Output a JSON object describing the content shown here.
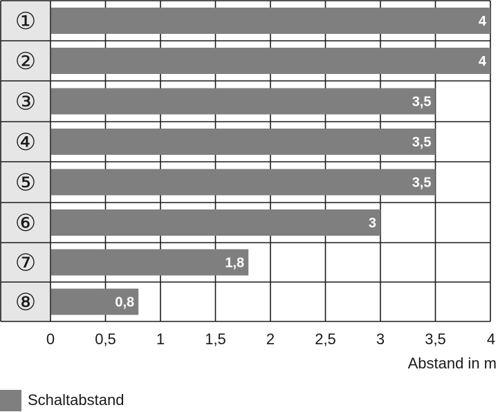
{
  "chart_data": {
    "type": "bar",
    "orientation": "horizontal",
    "categories": [
      "①",
      "②",
      "③",
      "④",
      "⑤",
      "⑥",
      "⑦",
      "⑧"
    ],
    "values": [
      4,
      4,
      3.5,
      3.5,
      3.5,
      3,
      1.8,
      0.8
    ],
    "value_labels": [
      "4",
      "4",
      "3,5",
      "3,5",
      "3,5",
      "3",
      "1,8",
      "0,8"
    ],
    "x_ticks": [
      "0",
      "0,5",
      "1",
      "1,5",
      "2",
      "2,5",
      "3",
      "3,5",
      "4"
    ],
    "xlim": [
      0,
      4
    ],
    "xlabel": "Abstand in m",
    "grid": true,
    "legend": [
      {
        "name": "Schaltabstand",
        "color": "#7f7f7f"
      }
    ],
    "legend_position": "bottom-left"
  },
  "colors": {
    "bar": "#7f7f7f",
    "category_panel": "#e6e6e6",
    "grid": "#1a1a1a"
  }
}
